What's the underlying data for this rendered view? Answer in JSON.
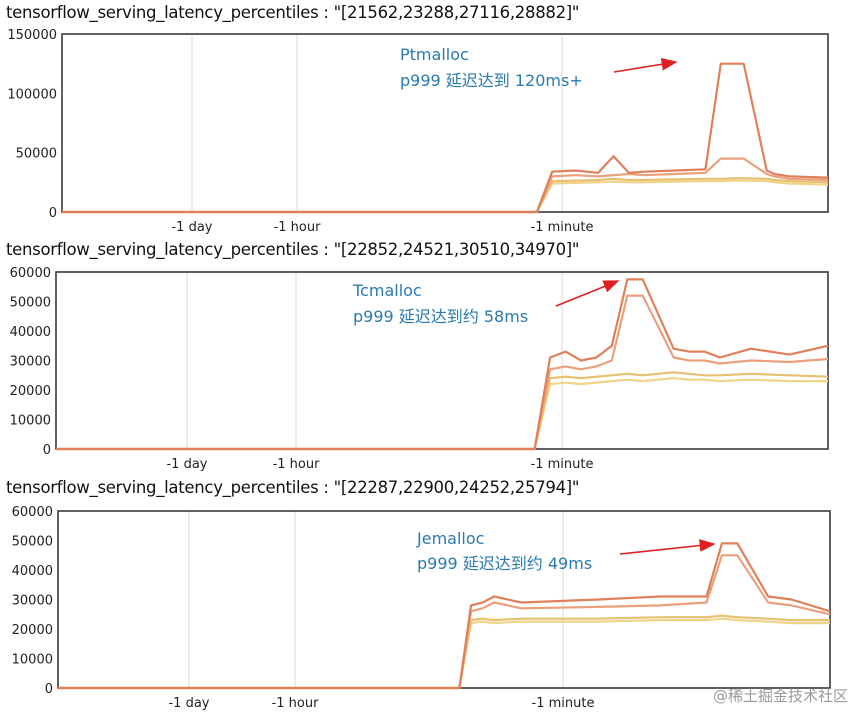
{
  "colors": {
    "frame": "#3a3a3a",
    "vgrid": "#d8d8d8",
    "annotation": "#2a7ab0",
    "arrow": "#e02020",
    "series": [
      "#f0d48a",
      "#e8c070",
      "#e9a07c",
      "#e0805a"
    ]
  },
  "panels": [
    {
      "title": "tensorflow_serving_latency_percentiles : \"[21562,23288,27116,28882]\"",
      "annotation": [
        "Ptmalloc",
        "p999 延迟达到 120ms+"
      ],
      "x_labels": [
        "-1 day",
        "-1 hour",
        "-1 minute"
      ]
    },
    {
      "title": "tensorflow_serving_latency_percentiles : \"[22852,24521,30510,34970]\"",
      "annotation": [
        "Tcmalloc",
        "p999 延迟达到约 58ms"
      ],
      "x_labels": [
        "-1 day",
        "-1 hour",
        "-1 minute"
      ]
    },
    {
      "title": "tensorflow_serving_latency_percentiles : \"[22287,22900,24252,25794]\"",
      "annotation": [
        "Jemalloc",
        "p999 延迟达到约 49ms"
      ],
      "x_labels": [
        "-1 day",
        "-1 hour",
        "-1 minute"
      ]
    }
  ],
  "watermark": "@稀土掘金技术社区",
  "chart_data": [
    {
      "type": "line",
      "title": "tensorflow_serving_latency_percentiles : \"[21562,23288,27116,28882]\"",
      "x_ticks": [
        "-1 day",
        "-1 hour",
        "-1 minute"
      ],
      "ylim": [
        0,
        150000
      ],
      "y_ticks": [
        0,
        50000,
        100000,
        150000
      ],
      "x": [
        0,
        0.62,
        0.64,
        0.67,
        0.7,
        0.72,
        0.74,
        0.76,
        0.8,
        0.84,
        0.86,
        0.88,
        0.89,
        0.92,
        0.93,
        0.95,
        1.0
      ],
      "series": [
        {
          "values": [
            0,
            0,
            24000,
            24500,
            25000,
            25500,
            25000,
            25000,
            25500,
            26000,
            26000,
            26500,
            26500,
            26000,
            25000,
            24000,
            23000
          ]
        },
        {
          "values": [
            0,
            0,
            26000,
            26500,
            27000,
            28000,
            27000,
            27000,
            27500,
            28000,
            28000,
            28500,
            28500,
            28000,
            27000,
            26000,
            25000
          ]
        },
        {
          "values": [
            0,
            0,
            30000,
            31000,
            30000,
            31000,
            32000,
            31000,
            32000,
            33000,
            45000,
            45000,
            45000,
            32000,
            30000,
            28000,
            27000
          ]
        },
        {
          "values": [
            0,
            0,
            34000,
            35000,
            33000,
            47000,
            33000,
            34000,
            35000,
            36000,
            125000,
            125000,
            125000,
            35000,
            32000,
            30000,
            29000
          ]
        }
      ],
      "annotations": [
        "Ptmalloc",
        "p999 延迟达到 120ms+"
      ]
    },
    {
      "type": "line",
      "title": "tensorflow_serving_latency_percentiles : \"[22852,24521,30510,34970]\"",
      "x_ticks": [
        "-1 day",
        "-1 hour",
        "-1 minute"
      ],
      "ylim": [
        0,
        60000
      ],
      "y_ticks": [
        0,
        10000,
        20000,
        30000,
        40000,
        50000,
        60000
      ],
      "x": [
        0,
        0.62,
        0.64,
        0.66,
        0.68,
        0.7,
        0.72,
        0.74,
        0.76,
        0.8,
        0.82,
        0.84,
        0.86,
        0.9,
        0.95,
        1.0
      ],
      "series": [
        {
          "values": [
            0,
            0,
            22000,
            22500,
            22000,
            22500,
            23000,
            23500,
            23000,
            24000,
            23500,
            23500,
            23000,
            23500,
            23000,
            23000
          ]
        },
        {
          "values": [
            0,
            0,
            24000,
            24500,
            24000,
            24500,
            25000,
            25500,
            25000,
            26000,
            25500,
            25000,
            25000,
            25500,
            25000,
            24500
          ]
        },
        {
          "values": [
            0,
            0,
            27000,
            28000,
            27000,
            28000,
            30000,
            52000,
            52000,
            31000,
            30000,
            30000,
            29000,
            30000,
            29500,
            30500
          ]
        },
        {
          "values": [
            0,
            0,
            31000,
            33000,
            30000,
            31000,
            35000,
            57500,
            57500,
            34000,
            33000,
            33000,
            31000,
            34000,
            32000,
            35000
          ]
        }
      ],
      "annotations": [
        "Tcmalloc",
        "p999 延迟达到约 58ms"
      ]
    },
    {
      "type": "line",
      "title": "tensorflow_serving_latency_percentiles : \"[22287,22900,24252,25794]\"",
      "x_ticks": [
        "-1 day",
        "-1 hour",
        "-1 minute"
      ],
      "ylim": [
        0,
        60000
      ],
      "y_ticks": [
        0,
        10000,
        20000,
        30000,
        40000,
        50000,
        60000
      ],
      "x": [
        0,
        0.5,
        0.505,
        0.515,
        0.52,
        0.535,
        0.55,
        0.565,
        0.6,
        0.7,
        0.78,
        0.84,
        0.86,
        0.88,
        0.92,
        0.95,
        1.0
      ],
      "series": [
        {
          "values": [
            0,
            0,
            0,
            0,
            0,
            22000,
            22500,
            22000,
            22500,
            22500,
            23000,
            23000,
            23500,
            23000,
            22500,
            22000,
            22000
          ]
        },
        {
          "values": [
            0,
            0,
            0,
            0,
            0,
            23000,
            23500,
            23000,
            23500,
            23500,
            24000,
            24000,
            24500,
            24000,
            23500,
            23000,
            23000
          ]
        },
        {
          "values": [
            0,
            0,
            0,
            0,
            0,
            26000,
            27000,
            29000,
            27000,
            27500,
            28000,
            29000,
            45000,
            45000,
            29000,
            28000,
            25000
          ]
        },
        {
          "values": [
            0,
            0,
            0,
            0,
            0,
            28000,
            29000,
            31000,
            29000,
            30000,
            31000,
            31000,
            49000,
            49000,
            31000,
            30000,
            26000
          ]
        }
      ],
      "annotations": [
        "Jemalloc",
        "p999 延迟达到约 49ms"
      ]
    }
  ]
}
